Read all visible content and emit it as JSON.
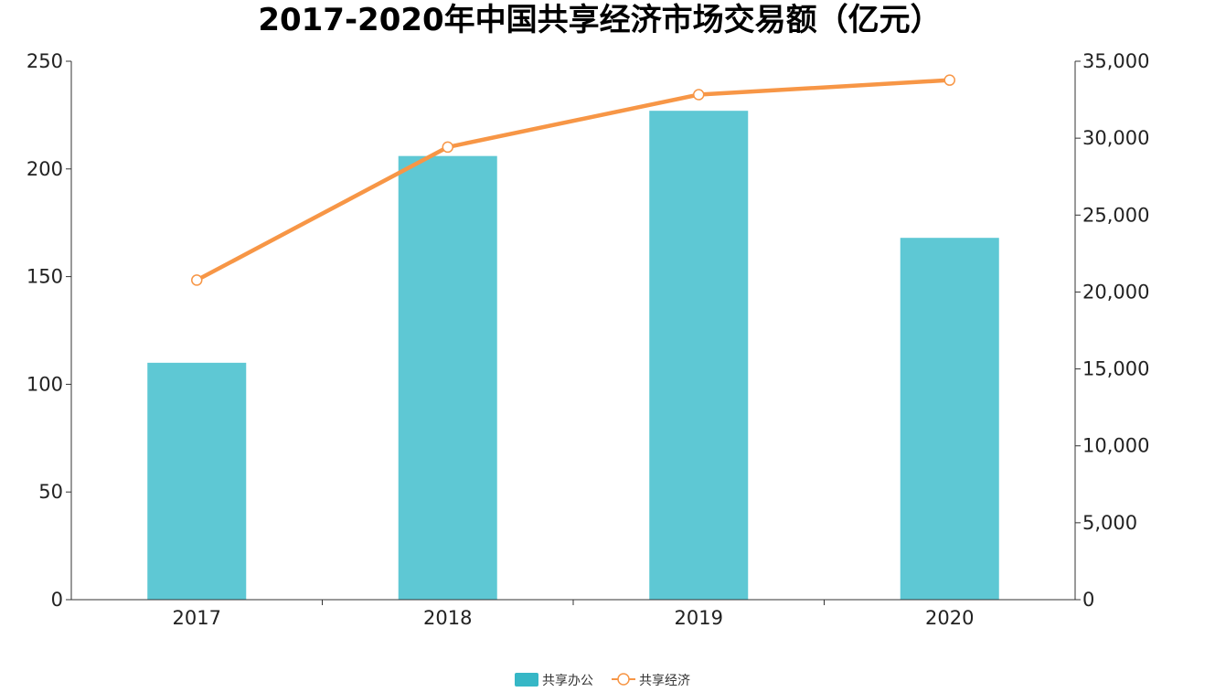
{
  "chart_data": {
    "type": "bar",
    "title": "2017-2020年中国共享经济市场交易额（亿元）",
    "categories": [
      "2017",
      "2018",
      "2019",
      "2020"
    ],
    "series": [
      {
        "name": "共享办公",
        "type": "bar",
        "axis": "left",
        "values": [
          110,
          206,
          227,
          168
        ],
        "color": "#5ec8d4"
      },
      {
        "name": "共享经济",
        "type": "line",
        "axis": "right",
        "values": [
          20772,
          29420,
          32828,
          33773
        ],
        "color": "#f79646"
      }
    ],
    "y_left": {
      "ylim": [
        0,
        250
      ],
      "ticks": [
        "0",
        "50",
        "100",
        "150",
        "200",
        "250"
      ]
    },
    "y_right": {
      "ylim": [
        0,
        35000
      ],
      "ticks": [
        "0",
        "5,000",
        "10,000",
        "15,000",
        "20,000",
        "25,000",
        "30,000",
        "35,000"
      ]
    },
    "xlabel": "",
    "ylabel": "",
    "grid": false,
    "legend": "bottom-center"
  }
}
